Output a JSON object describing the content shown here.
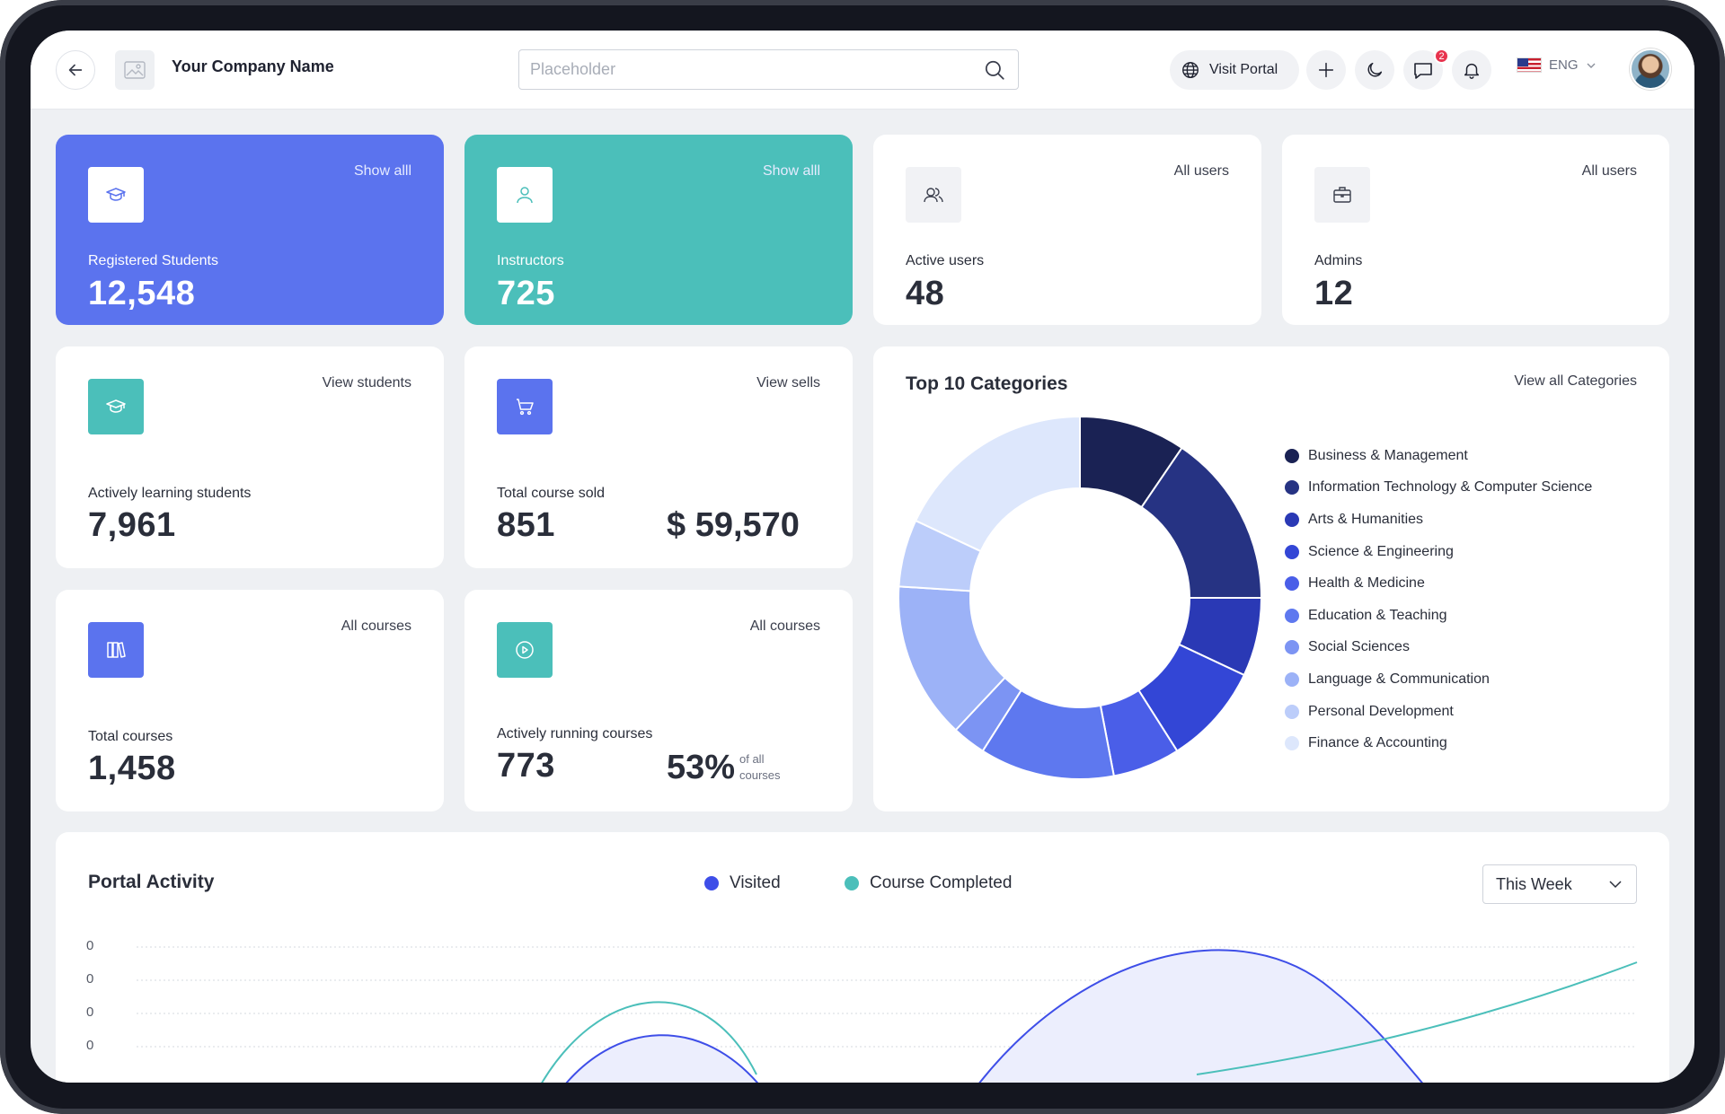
{
  "header": {
    "company_name": "Your Company Name",
    "search_placeholder": "Placeholder",
    "visit_portal_label": "Visit Portal",
    "messages_badge": "2",
    "language": "ENG"
  },
  "stats": {
    "registered_students": {
      "label": "Registered Students",
      "value": "12,548",
      "link": "Show alll"
    },
    "instructors": {
      "label": "Instructors",
      "value": "725",
      "link": "Show alll"
    },
    "active_users": {
      "label": "Active users",
      "value": "48",
      "link": "All users"
    },
    "admins": {
      "label": "Admins",
      "value": "12",
      "link": "All users"
    },
    "learning_students": {
      "label": "Actively learning students",
      "value": "7,961",
      "link": "View students"
    },
    "course_sold": {
      "label": "Total course sold",
      "value": "851",
      "revenue": "$ 59,570",
      "link": "View sells"
    },
    "total_courses": {
      "label": "Total courses",
      "value": "1,458",
      "link": "All courses"
    },
    "running_courses": {
      "label": "Actively running courses",
      "value": "773",
      "percent": "53%",
      "note_line1": "of all",
      "note_line2": "courses",
      "link": "All courses"
    }
  },
  "categories": {
    "title": "Top 10 Categories",
    "link": "View all Categories",
    "items": [
      {
        "name": "Business & Management",
        "color": "#1a2254"
      },
      {
        "name": "Information Technology & Computer Science",
        "color": "#263383"
      },
      {
        "name": "Arts & Humanities",
        "color": "#2a39b5"
      },
      {
        "name": "Science & Engineering",
        "color": "#3346d6"
      },
      {
        "name": "Health & Medicine",
        "color": "#4a5ee8"
      },
      {
        "name": "Education & Teaching",
        "color": "#5e78ef"
      },
      {
        "name": "Social Sciences",
        "color": "#7c94f3"
      },
      {
        "name": "Language & Communication",
        "color": "#9cb2f7"
      },
      {
        "name": "Personal Development",
        "color": "#bccdfa"
      },
      {
        "name": "Finance & Accounting",
        "color": "#dde7fc"
      }
    ]
  },
  "chart_data": {
    "type": "pie",
    "title": "Top 10 Categories",
    "categories": [
      "Business & Management",
      "Information Technology & Computer Science",
      "Arts & Humanities",
      "Science & Engineering",
      "Health & Medicine",
      "Education & Teaching",
      "Social Sciences",
      "Language & Communication",
      "Personal Development",
      "Finance & Accounting"
    ],
    "values": [
      9.5,
      15.5,
      7,
      9,
      6,
      12,
      3,
      14,
      6,
      18
    ],
    "donut": true,
    "legend": "right"
  },
  "activity": {
    "title": "Portal Activity",
    "series": [
      {
        "name": "Visited",
        "color": "#3e4ee8"
      },
      {
        "name": "Course Completed",
        "color": "#4bbfba"
      }
    ],
    "range_label": "This Week",
    "y_ticks": [
      "0",
      "0",
      "0",
      "0"
    ]
  }
}
